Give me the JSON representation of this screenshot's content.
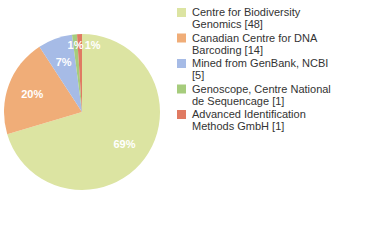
{
  "chart_data": {
    "type": "pie",
    "categories": [
      "Centre for Biodiversity Genomics [48]",
      "Canadian Centre for DNA Barcoding [14]",
      "Mined from GenBank, NCBI [5]",
      "Genoscope, Centre National de Sequencage [1]",
      "Advanced Identification Methods GmbH [1]"
    ],
    "values": [
      69,
      20,
      7,
      1,
      1
    ],
    "value_labels": [
      "69%",
      "20%",
      "7%",
      "1%",
      "1%"
    ],
    "colors": [
      "#dce4a2",
      "#f0ad78",
      "#a6bbe6",
      "#a6cc7c",
      "#e07a62"
    ],
    "data_labels": true,
    "legend": "right"
  }
}
